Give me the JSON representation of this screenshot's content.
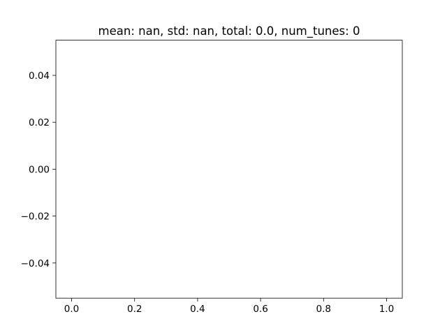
{
  "chart_data": {
    "type": "line",
    "title": "mean: nan, std: nan, total: 0.0, num_tunes: 0",
    "xlabel": "",
    "ylabel": "",
    "series": [],
    "xlim": [
      -0.05,
      1.05
    ],
    "ylim": [
      -0.055,
      0.055
    ],
    "xticks": [
      0.0,
      0.2,
      0.4,
      0.6,
      0.8,
      1.0
    ],
    "xtick_labels": [
      "0.0",
      "0.2",
      "0.4",
      "0.6",
      "0.8",
      "1.0"
    ],
    "yticks": [
      -0.04,
      -0.02,
      0.0,
      0.02,
      0.04
    ],
    "ytick_labels": [
      "−0.04",
      "−0.02",
      "0.00",
      "0.02",
      "0.04"
    ],
    "grid": false,
    "colors": {
      "axes": "#000000",
      "background": "#ffffff"
    }
  }
}
